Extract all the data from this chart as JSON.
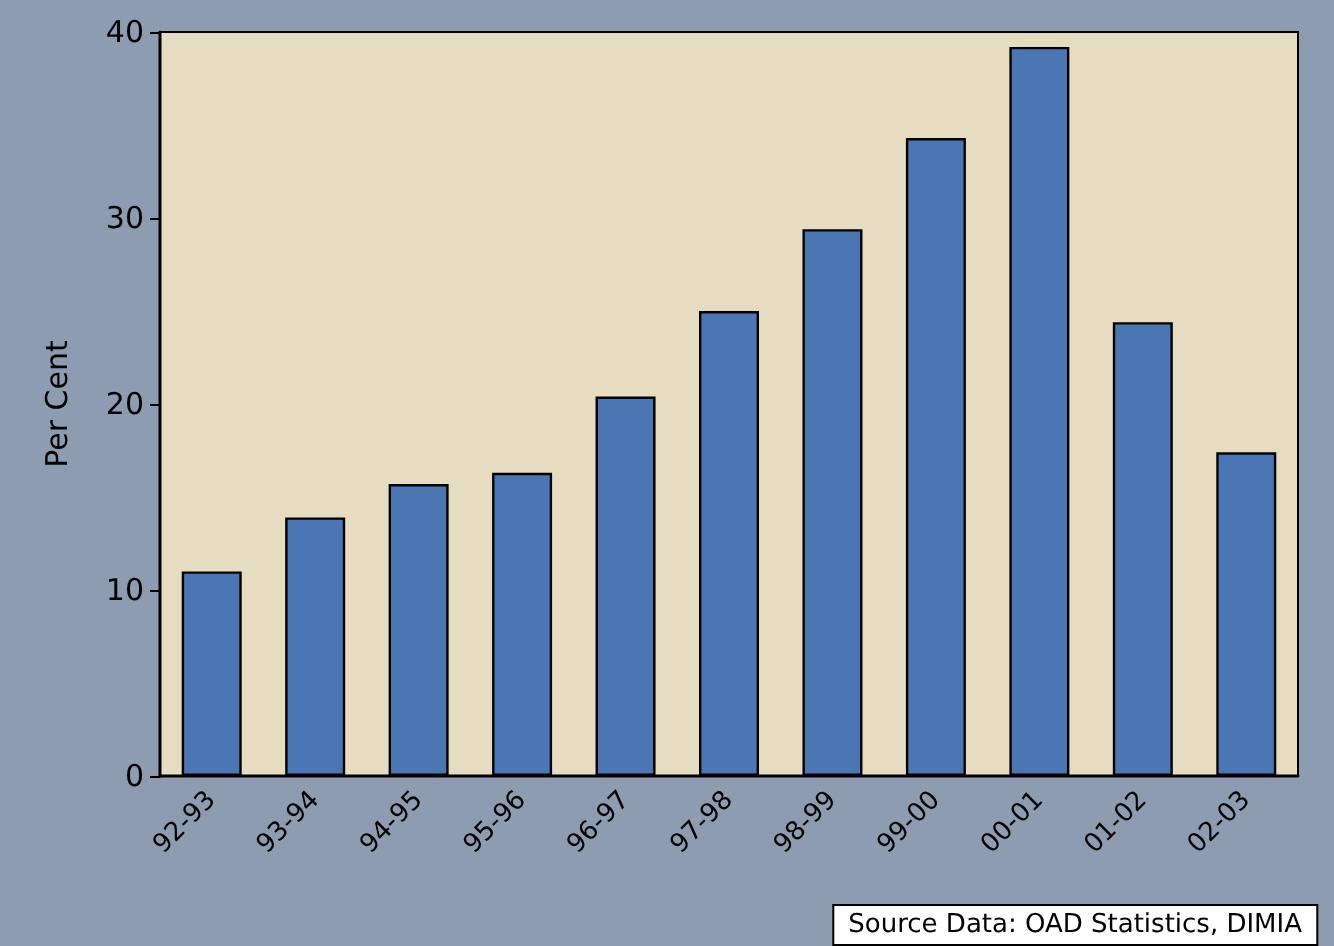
{
  "chart_data": {
    "type": "bar",
    "ylabel": "Per Cent",
    "categories": [
      "92-93",
      "93-94",
      "94-95",
      "95-96",
      "96-97",
      "97-98",
      "98-99",
      "99-00",
      "00-01",
      "01-02",
      "02-03"
    ],
    "values": [
      11,
      13.9,
      15.7,
      16.3,
      20.4,
      25,
      29.4,
      34.3,
      39.2,
      24.4,
      17.4
    ],
    "color": "#4a77b4",
    "ylim": [
      0,
      40
    ],
    "yticks": [
      0,
      10,
      20,
      30,
      40
    ],
    "grid": false,
    "annotations": [
      "Source Data: OAD Statistics, DIMIA"
    ]
  }
}
